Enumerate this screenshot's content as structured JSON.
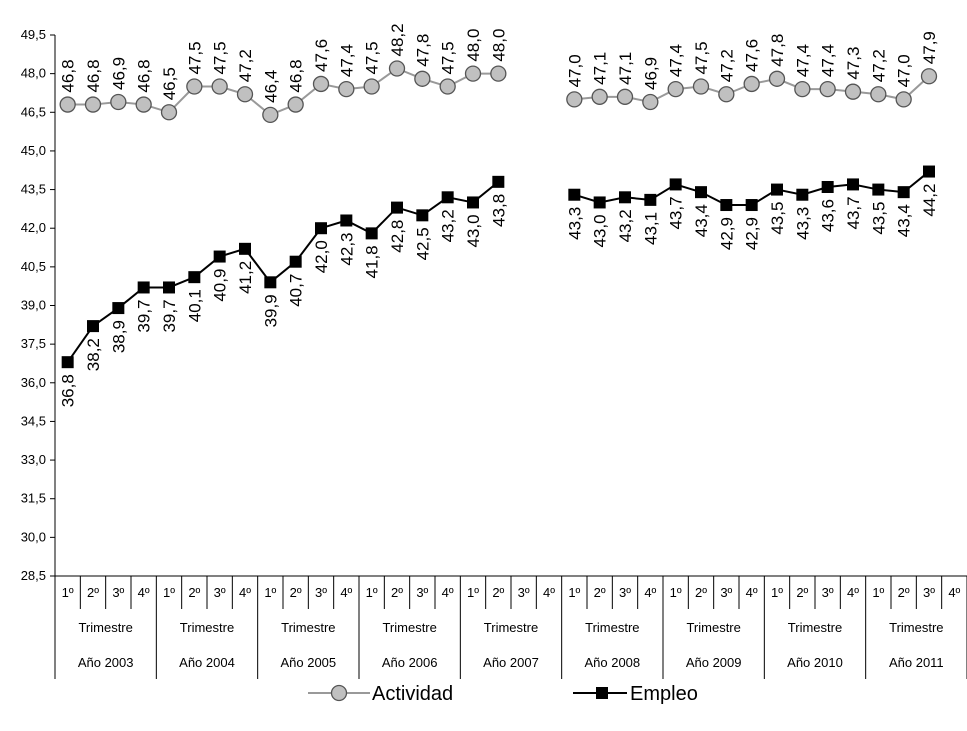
{
  "chart_data": {
    "type": "line",
    "title": "",
    "xlabel": "",
    "ylabel": "",
    "ylim": [
      28.5,
      49.5
    ],
    "y_ticks": [
      "28,5",
      "30,0",
      "31,5",
      "33,0",
      "34,5",
      "36,0",
      "37,5",
      "39,0",
      "40,5",
      "42,0",
      "43,5",
      "45,0",
      "46,5",
      "48,0",
      "49,5"
    ],
    "grid": false,
    "legend_position": "bottom",
    "quarter_labels": [
      "1º",
      "2º",
      "3º",
      "4º"
    ],
    "trimestre_label": "Trimestre",
    "years": [
      "Año 2003",
      "Año 2004",
      "Año 2005",
      "Año 2006",
      "Año 2007",
      "Año 2008",
      "Año 2009",
      "Año 2010",
      "Año 2011"
    ],
    "series": [
      {
        "name": "Actividad",
        "marker": "circle",
        "line_color": "#999999",
        "marker_fill": "#c0c0c0",
        "label_position": "above",
        "values": [
          46.8,
          46.8,
          46.9,
          46.8,
          46.5,
          47.5,
          47.5,
          47.2,
          46.4,
          46.8,
          47.6,
          47.4,
          47.5,
          48.2,
          47.8,
          47.5,
          48.0,
          48.0,
          null,
          null,
          47.0,
          47.1,
          47.1,
          46.9,
          47.4,
          47.5,
          47.2,
          47.6,
          47.8,
          47.4,
          47.4,
          47.3,
          47.2,
          47.0,
          47.9,
          null
        ],
        "labels": [
          "46,8",
          "46,8",
          "46,9",
          "46,8",
          "46,5",
          "47,5",
          "47,5",
          "47,2",
          "46,4",
          "46,8",
          "47,6",
          "47,4",
          "47,5",
          "48,2",
          "47,8",
          "47,5",
          "48,0",
          "48,0",
          "",
          "",
          "47,0",
          "47,1",
          "47,1",
          "46,9",
          "47,4",
          "47,5",
          "47,2",
          "47,6",
          "47,8",
          "47,4",
          "47,4",
          "47,3",
          "47,2",
          "47,0",
          "47,9",
          ""
        ]
      },
      {
        "name": "Empleo",
        "marker": "square",
        "line_color": "#000000",
        "marker_fill": "#000000",
        "label_position": "below",
        "values": [
          36.8,
          38.2,
          38.9,
          39.7,
          39.7,
          40.1,
          40.9,
          41.2,
          39.9,
          40.7,
          42.0,
          42.3,
          41.8,
          42.8,
          42.5,
          43.2,
          43.0,
          43.8,
          null,
          null,
          43.3,
          43.0,
          43.2,
          43.1,
          43.7,
          43.4,
          42.9,
          42.9,
          43.5,
          43.3,
          43.6,
          43.7,
          43.5,
          43.4,
          44.2,
          null
        ],
        "labels": [
          "36,8",
          "38,2",
          "38,9",
          "39,7",
          "39,7",
          "40,1",
          "40,9",
          "41,2",
          "39,9",
          "40,7",
          "42,0",
          "42,3",
          "41,8",
          "42,8",
          "42,5",
          "43,2",
          "43,0",
          "43,8",
          "",
          "",
          "43,3",
          "43,0",
          "43,2",
          "43,1",
          "43,7",
          "43,4",
          "42,9",
          "42,9",
          "43,5",
          "43,3",
          "43,6",
          "43,7",
          "43,5",
          "43,4",
          "44,2",
          ""
        ]
      }
    ]
  }
}
